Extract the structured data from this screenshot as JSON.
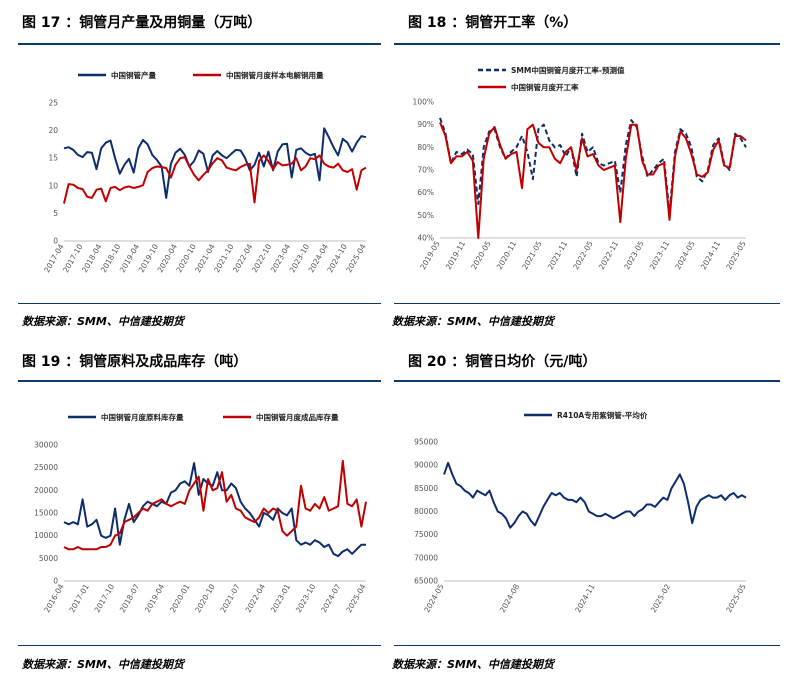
{
  "figures": [
    {
      "title": "图 17 ：铜管月产量及用铜量（万吨）",
      "source": "数据来源：SMM、中信建投期货",
      "chart_data": {
        "type": "line",
        "x_ticks": [
          "2017-04",
          "2017-10",
          "2018-04",
          "2018-10",
          "2019-04",
          "2019-10",
          "2020-04",
          "2020-10",
          "2021-04",
          "2021-10",
          "2022-04",
          "2022-10",
          "2023-04",
          "2023-10",
          "2024-04",
          "2024-10",
          "2025-04"
        ],
        "ylim": [
          0,
          25
        ],
        "y_ticks": [
          0,
          5,
          10,
          15,
          20,
          25
        ],
        "series": [
          {
            "name": "中国铜管产量",
            "color": "#0d2c6c",
            "values": [
              16.8,
              17.0,
              16.5,
              15.6,
              15.2,
              16.1,
              16.0,
              13.0,
              16.8,
              17.8,
              18.2,
              15.0,
              12.2,
              13.8,
              14.9,
              12.4,
              16.8,
              18.3,
              17.5,
              15.6,
              14.7,
              13.5,
              7.8,
              14.0,
              16.0,
              16.7,
              15.6,
              13.5,
              14.5,
              16.4,
              15.8,
              12.5,
              15.5,
              16.3,
              15.5,
              15.0,
              15.8,
              16.5,
              16.4,
              15.0,
              12.8,
              13.8,
              16.0,
              13.5,
              16.2,
              12.8,
              16.2,
              17.5,
              17.6,
              11.5,
              16.5,
              16.8,
              16.0,
              15.5,
              15.8,
              11.0,
              20.4,
              18.8,
              17.0,
              15.5,
              18.5,
              17.8,
              16.2,
              17.8,
              19.0,
              18.8
            ]
          },
          {
            "name": "中国铜管月度样本电解铜用量",
            "color": "#c00000",
            "values": [
              6.8,
              10.3,
              10.2,
              9.6,
              9.4,
              8.0,
              7.8,
              9.3,
              9.5,
              7.2,
              9.6,
              9.8,
              9.2,
              9.7,
              9.9,
              9.6,
              9.8,
              10.1,
              12.5,
              13.2,
              13.5,
              13.4,
              13.2,
              11.5,
              13.8,
              15.0,
              15.2,
              13.5,
              12.0,
              11.0,
              12.0,
              12.8,
              14.1,
              15.0,
              14.6,
              13.3,
              13.0,
              12.8,
              13.4,
              13.8,
              14.0,
              7.0,
              14.5,
              15.5,
              14.5,
              13.0,
              14.3,
              13.7,
              13.8,
              14.0,
              15.0,
              12.8,
              13.5,
              15.0,
              14.8,
              15.5,
              14.0,
              13.5,
              13.3,
              14.0,
              12.8,
              12.5,
              13.0,
              9.3,
              12.8,
              13.3
            ]
          }
        ]
      }
    },
    {
      "title": "图 18 ：铜管开工率（%）",
      "source": "数据来源：SMM、中信建投期货",
      "chart_data": {
        "type": "line",
        "x_ticks": [
          "2019-05",
          "2019-11",
          "2020-05",
          "2020-11",
          "2021-05",
          "2021-11",
          "2022-05",
          "2022-11",
          "2023-05",
          "2023-11",
          "2024-05",
          "2024-11",
          "2025-05"
        ],
        "ylim": [
          40,
          100
        ],
        "y_ticks": [
          "40%",
          "50%",
          "60%",
          "70%",
          "80%",
          "90%",
          "100%"
        ],
        "series": [
          {
            "name": "SMM中国铜管月度开工率-预测值",
            "color": "#0d2c6c",
            "dashed": true,
            "values": [
              93,
              86,
              73,
              78,
              77,
              79,
              77,
              55,
              80,
              87,
              88,
              80,
              75,
              78,
              80,
              85,
              78,
              66,
              88,
              90,
              83,
              80,
              81,
              76,
              80,
              67,
              86,
              78,
              80,
              73,
              72,
              73,
              74,
              60,
              81,
              92,
              89,
              76,
              67,
              70,
              73,
              75,
              51,
              78,
              88,
              86,
              80,
              67,
              65,
              70,
              81,
              84,
              73,
              70,
              86,
              84,
              80
            ]
          },
          {
            "name": "中国铜管月度开工率",
            "color": "#c00000",
            "values": [
              91,
              85,
              73,
              76,
              76,
              78,
              74,
              40,
              75,
              86,
              89,
              81,
              75,
              77,
              78,
              62,
              88,
              90,
              82,
              80,
              80,
              75,
              73,
              78,
              80,
              70,
              84,
              76,
              77,
              72,
              70,
              71,
              72,
              47,
              75,
              90,
              90,
              74,
              68,
              68,
              72,
              73,
              48,
              76,
              87,
              84,
              77,
              68,
              67,
              69,
              79,
              83,
              72,
              71,
              85,
              85,
              83
            ]
          }
        ]
      }
    },
    {
      "title": "图 19 ：铜管原料及成品库存（吨）",
      "source": "数据来源：SMM、中信建投期货",
      "chart_data": {
        "type": "line",
        "x_ticks": [
          "2016-04",
          "2017-01",
          "2017-10",
          "2018-07",
          "2019-04",
          "2020-01",
          "2020-10",
          "2021-07",
          "2022-04",
          "2023-01",
          "2023-10",
          "2024-07",
          "2025-04"
        ],
        "ylim": [
          0,
          30000
        ],
        "y_ticks": [
          0,
          5000,
          10000,
          15000,
          20000,
          25000,
          30000
        ],
        "series": [
          {
            "name": "中国铜管月度原料库存量",
            "color": "#0d2c6c",
            "values": [
              13000,
              12500,
              13000,
              12500,
              18000,
              12000,
              12500,
              13500,
              10000,
              9500,
              10000,
              16000,
              8000,
              13500,
              17000,
              13000,
              14500,
              16500,
              17500,
              17000,
              16500,
              17500,
              17000,
              19500,
              20000,
              21500,
              22000,
              21000,
              26000,
              19000,
              22500,
              21500,
              21000,
              24000,
              20000,
              20000,
              21500,
              20500,
              17500,
              16000,
              15000,
              13500,
              12000,
              15000,
              14500,
              13500,
              16000,
              15000,
              14500,
              16000,
              9000,
              8000,
              8500,
              8000,
              9000,
              8500,
              7500,
              8000,
              6000,
              5500,
              6500,
              7000,
              6000,
              7000,
              8000,
              8000
            ]
          },
          {
            "name": "中国铜管月度成品库存量",
            "color": "#c00000",
            "values": [
              7500,
              7000,
              7000,
              7500,
              7000,
              7000,
              7000,
              7000,
              7500,
              7500,
              8000,
              10000,
              10500,
              13000,
              13500,
              14000,
              15000,
              16000,
              15500,
              17000,
              17500,
              18000,
              17000,
              16500,
              17000,
              17500,
              17000,
              20000,
              21500,
              23000,
              15500,
              22500,
              20000,
              20500,
              24000,
              17500,
              19000,
              16000,
              15500,
              14000,
              13500,
              13000,
              14000,
              16000,
              15000,
              16000,
              15500,
              11000,
              10000,
              11000,
              12000,
              21000,
              16000,
              15500,
              17000,
              16000,
              18500,
              15500,
              16000,
              16500,
              26500,
              17000,
              16500,
              18000,
              12000,
              17500
            ]
          }
        ]
      }
    },
    {
      "title": "图 20 ：铜管日均价（元/吨）",
      "source": "数据来源：SMM、中信建投期货",
      "chart_data": {
        "type": "line",
        "x_ticks": [
          "2024-05",
          "2024-08",
          "2024-11",
          "2025-02",
          "2025-05"
        ],
        "ylim": [
          65000,
          95000
        ],
        "y_ticks": [
          65000,
          70000,
          75000,
          80000,
          85000,
          90000,
          95000
        ],
        "series": [
          {
            "name": "R410A专用紫铜管-平均价",
            "color": "#0d2c6c",
            "values": [
              88000,
              90500,
              88000,
              86000,
              85500,
              84500,
              84000,
              83000,
              84500,
              84000,
              83500,
              84500,
              82000,
              80000,
              79500,
              78500,
              76500,
              77500,
              79000,
              80000,
              79500,
              78000,
              77000,
              79000,
              81000,
              82500,
              84000,
              83500,
              84000,
              83000,
              82500,
              82500,
              82000,
              83000,
              82000,
              80000,
              79500,
              79000,
              79000,
              79500,
              79000,
              78500,
              79000,
              79500,
              80000,
              80000,
              79000,
              80000,
              80500,
              81500,
              81500,
              81000,
              82000,
              83000,
              82500,
              85000,
              86500,
              88000,
              86000,
              82000,
              77500,
              81000,
              82500,
              83000,
              83500,
              83000,
              83000,
              83500,
              82500,
              83500,
              84000,
              83000,
              83500,
              83000
            ]
          }
        ]
      }
    }
  ]
}
